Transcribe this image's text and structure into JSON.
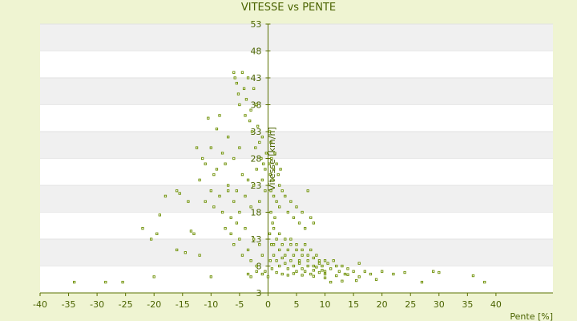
{
  "chart_data": {
    "type": "scatter",
    "title": "VITESSE vs PENTE",
    "xlabel": "Pente [%]",
    "ylabel": "Vitesse [km/h]",
    "xlim": [
      -40,
      50
    ],
    "ylim": [
      3,
      53
    ],
    "x_ticks": [
      -40,
      -35,
      -30,
      -25,
      -20,
      -15,
      -10,
      -5,
      0,
      5,
      10,
      15,
      20,
      25,
      30,
      35,
      40
    ],
    "y_ticks": [
      3,
      8,
      13,
      18,
      23,
      28,
      33,
      38,
      43,
      48,
      53
    ],
    "grid": "horizontal alternating bands",
    "legend": "none",
    "colors": {
      "background": "#eff4d2",
      "plot": "#ffffff",
      "band": "#f0f0f0",
      "axis": "#5a7000",
      "marker": "#6b8e00"
    },
    "points": [
      [
        -34,
        5
      ],
      [
        -28.5,
        5
      ],
      [
        -25.5,
        5
      ],
      [
        -20,
        6
      ],
      [
        -10,
        6
      ],
      [
        -3,
        6
      ],
      [
        0,
        6
      ],
      [
        11,
        5
      ],
      [
        13,
        5.2
      ],
      [
        15.5,
        5.3
      ],
      [
        19,
        5.5
      ],
      [
        27,
        5
      ],
      [
        38,
        5
      ],
      [
        -20.5,
        13
      ],
      [
        -19.5,
        14
      ],
      [
        -19,
        17.5
      ],
      [
        -18,
        21
      ],
      [
        -16,
        22
      ],
      [
        -15.5,
        21.5
      ],
      [
        -14,
        20
      ],
      [
        -13.5,
        14.5
      ],
      [
        -13,
        14
      ],
      [
        -22,
        15
      ],
      [
        -16,
        11
      ],
      [
        -14.5,
        10.5
      ],
      [
        -12,
        10
      ],
      [
        -12.5,
        30
      ],
      [
        -12,
        24
      ],
      [
        -11.5,
        28
      ],
      [
        -11,
        27
      ],
      [
        -10.5,
        35.5
      ],
      [
        -10,
        30
      ],
      [
        -9.5,
        25
      ],
      [
        -9,
        33.5
      ],
      [
        -8.5,
        36
      ],
      [
        -8,
        29
      ],
      [
        -7.5,
        27
      ],
      [
        -7,
        32
      ],
      [
        -7,
        22
      ],
      [
        -6.5,
        17
      ],
      [
        -6,
        44
      ],
      [
        -5.8,
        43
      ],
      [
        -5.5,
        42
      ],
      [
        -5.2,
        40
      ],
      [
        -5,
        38
      ],
      [
        -4.5,
        44
      ],
      [
        -4.2,
        41
      ],
      [
        -4,
        36
      ],
      [
        -3.8,
        39
      ],
      [
        -3.5,
        43
      ],
      [
        -3.2,
        35
      ],
      [
        -3,
        37
      ],
      [
        -2.8,
        33
      ],
      [
        -2.5,
        41
      ],
      [
        -2.2,
        30
      ],
      [
        -2,
        38
      ],
      [
        -1.8,
        34
      ],
      [
        -1.5,
        31
      ],
      [
        -1.2,
        28
      ],
      [
        -1,
        32
      ],
      [
        -0.8,
        27
      ],
      [
        -0.5,
        26
      ],
      [
        -0.3,
        29
      ],
      [
        -6,
        20
      ],
      [
        -5.5,
        22
      ],
      [
        -5,
        18
      ],
      [
        -4.5,
        25
      ],
      [
        -4,
        21
      ],
      [
        -3.5,
        24
      ],
      [
        -3,
        19
      ],
      [
        -2.5,
        23
      ],
      [
        -2,
        26
      ],
      [
        -1.5,
        20
      ],
      [
        -1,
        24
      ],
      [
        -0.5,
        22
      ],
      [
        -6.5,
        14
      ],
      [
        -6,
        12
      ],
      [
        -5.5,
        16
      ],
      [
        -5,
        13
      ],
      [
        -4.5,
        10
      ],
      [
        -4,
        15
      ],
      [
        -3.5,
        11
      ],
      [
        -3,
        9
      ],
      [
        -2.5,
        13
      ],
      [
        -2,
        8
      ],
      [
        -1.5,
        12
      ],
      [
        -1,
        10
      ],
      [
        -0.5,
        7
      ],
      [
        -3.5,
        6.5
      ],
      [
        -2,
        7
      ],
      [
        -1,
        6.5
      ],
      [
        -8,
        18
      ],
      [
        -7.5,
        15
      ],
      [
        -7,
        23
      ],
      [
        -8.5,
        21
      ],
      [
        -9,
        26
      ],
      [
        -9.5,
        19
      ],
      [
        -10,
        22
      ],
      [
        -11,
        20
      ],
      [
        -6,
        28
      ],
      [
        -5,
        30
      ],
      [
        0.2,
        27
      ],
      [
        0.4,
        25
      ],
      [
        0.6,
        28
      ],
      [
        0.8,
        24
      ],
      [
        1,
        26
      ],
      [
        1.2,
        29
      ],
      [
        0.5,
        31
      ],
      [
        0.3,
        33
      ],
      [
        1.5,
        27
      ],
      [
        1.8,
        25
      ],
      [
        2,
        23
      ],
      [
        2.2,
        26
      ],
      [
        0.5,
        22
      ],
      [
        1,
        21
      ],
      [
        1.5,
        20
      ],
      [
        2,
        19
      ],
      [
        2.5,
        22
      ],
      [
        3,
        21
      ],
      [
        3.5,
        18
      ],
      [
        4,
        20
      ],
      [
        4.5,
        17
      ],
      [
        5,
        19
      ],
      [
        5.5,
        16
      ],
      [
        6,
        18
      ],
      [
        6.5,
        15
      ],
      [
        7,
        22
      ],
      [
        7.5,
        17
      ],
      [
        8,
        16
      ],
      [
        1,
        15
      ],
      [
        1.5,
        13
      ],
      [
        2,
        14
      ],
      [
        2.5,
        12
      ],
      [
        3,
        13
      ],
      [
        3.5,
        11
      ],
      [
        4,
        12
      ],
      [
        4.5,
        10
      ],
      [
        5,
        11
      ],
      [
        5.5,
        9
      ],
      [
        6,
        10
      ],
      [
        6.5,
        12
      ],
      [
        7,
        9
      ],
      [
        7.5,
        11
      ],
      [
        8,
        8
      ],
      [
        8.5,
        10
      ],
      [
        9,
        9
      ],
      [
        9.5,
        8
      ],
      [
        10,
        7
      ],
      [
        10.5,
        8.5
      ],
      [
        11,
        7.5
      ],
      [
        11.5,
        9
      ],
      [
        12,
        8
      ],
      [
        12.5,
        7
      ],
      [
        13,
        8
      ],
      [
        13.5,
        6.5
      ],
      [
        14,
        7.5
      ],
      [
        15,
        7
      ],
      [
        16,
        8.5
      ],
      [
        17,
        7
      ],
      [
        18,
        6.5
      ],
      [
        20,
        7
      ],
      [
        22,
        6.5
      ],
      [
        24,
        6.8
      ],
      [
        29,
        7
      ],
      [
        30,
        6.8
      ],
      [
        36,
        6.2
      ],
      [
        1,
        10
      ],
      [
        1.5,
        9
      ],
      [
        2,
        8
      ],
      [
        2.5,
        9.5
      ],
      [
        3,
        8.5
      ],
      [
        3.5,
        7.5
      ],
      [
        4,
        9
      ],
      [
        4.5,
        8
      ],
      [
        5,
        7
      ],
      [
        5.5,
        8.5
      ],
      [
        6,
        7.5
      ],
      [
        6.5,
        7
      ],
      [
        7,
        8
      ],
      [
        7.5,
        6.5
      ],
      [
        8,
        7.2
      ],
      [
        8.5,
        7.8
      ],
      [
        9,
        6.8
      ],
      [
        9.5,
        7.2
      ],
      [
        10,
        6.5
      ],
      [
        1,
        12
      ],
      [
        2,
        11
      ],
      [
        3,
        10
      ],
      [
        4,
        13
      ],
      [
        5,
        12
      ],
      [
        6,
        11
      ],
      [
        7,
        10
      ],
      [
        8,
        9.5
      ],
      [
        9,
        8.5
      ],
      [
        10,
        9
      ],
      [
        0.5,
        18
      ],
      [
        0.8,
        16
      ],
      [
        1.2,
        17
      ],
      [
        0.3,
        14
      ],
      [
        0.6,
        12
      ],
      [
        0.4,
        9
      ],
      [
        0.7,
        7.5
      ],
      [
        1.5,
        6.8
      ],
      [
        2.5,
        6.5
      ],
      [
        3.5,
        6.3
      ],
      [
        4.5,
        6.6
      ],
      [
        12,
        6.2
      ],
      [
        14,
        6.4
      ],
      [
        16,
        6
      ],
      [
        10,
        5.8
      ],
      [
        8,
        6.1
      ],
      [
        6,
        6.3
      ]
    ]
  }
}
